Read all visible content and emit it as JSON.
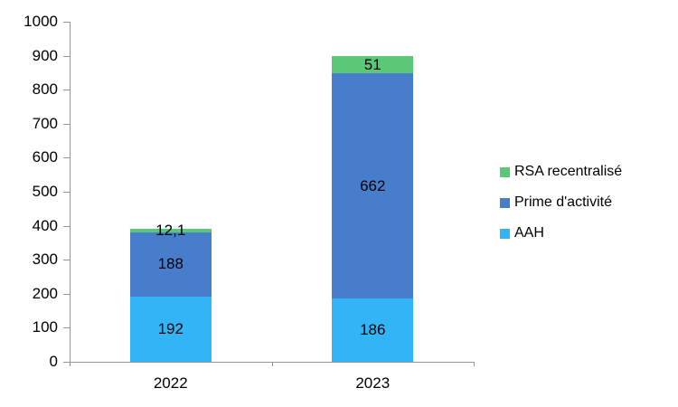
{
  "chart_data": {
    "type": "bar",
    "stacked": true,
    "title": "",
    "xlabel": "",
    "ylabel": "",
    "categories": [
      "2022",
      "2023"
    ],
    "series": [
      {
        "name": "AAH",
        "values": [
          192,
          186
        ],
        "labels": [
          "192",
          "186"
        ],
        "color": "#33B4F7"
      },
      {
        "name": "Prime d'activité",
        "values": [
          188,
          662
        ],
        "labels": [
          "188",
          "662"
        ],
        "color": "#487DCB"
      },
      {
        "name": "RSA recentralisé",
        "values": [
          12.1,
          51
        ],
        "labels": [
          "12,1",
          "51"
        ],
        "color": "#5BC878"
      }
    ],
    "totals": [
      392.1,
      899
    ],
    "ylim": [
      0,
      1000
    ],
    "ytick_step": 100,
    "ytick_labels": [
      "0",
      "100",
      "200",
      "300",
      "400",
      "500",
      "600",
      "700",
      "800",
      "900",
      "1000"
    ],
    "grid": false,
    "legend": {
      "position": "right",
      "entries": [
        "RSA recentralisé",
        "Prime d'activité",
        "AAH"
      ]
    },
    "axis_color": "#969696",
    "text_color": "#000000",
    "background_color": "#FFFFFF"
  }
}
